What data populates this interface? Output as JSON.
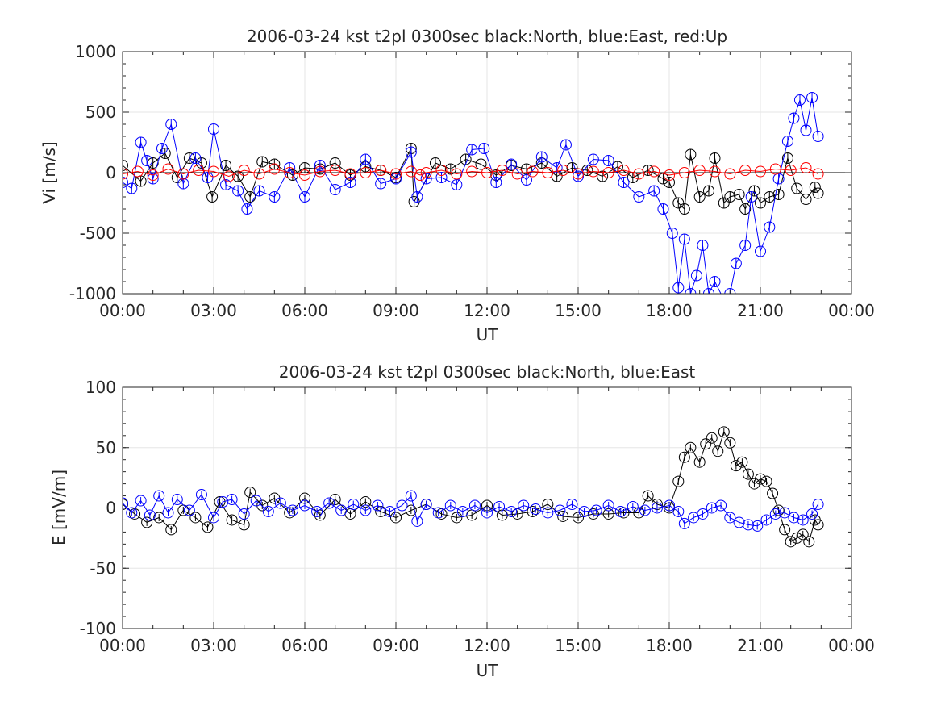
{
  "chart_data": [
    {
      "type": "scatter",
      "title": "2006-03-24 kst t2pl 0300sec black:North, blue:East, red:Up",
      "xlabel": "UT",
      "ylabel": "Vi [m/s]",
      "xlim": [
        0,
        24
      ],
      "ylim": [
        -1000,
        1000
      ],
      "grid": true,
      "xticks": [
        "00:00",
        "03:00",
        "06:00",
        "09:00",
        "12:00",
        "15:00",
        "18:00",
        "21:00",
        "00:00"
      ],
      "yticks": [
        "-1000",
        "-500",
        "0",
        "500",
        "1000"
      ],
      "x_unit": "hours UT",
      "colors": {
        "North": "#000000",
        "East": "#0000ff",
        "Up": "#ff0000"
      },
      "series": [
        {
          "name": "North",
          "x": [
            0.0,
            0.6,
            1.0,
            1.4,
            1.8,
            2.2,
            2.6,
            2.95,
            3.4,
            3.8,
            4.2,
            4.6,
            5.0,
            5.6,
            6.0,
            6.5,
            7.0,
            7.5,
            8.0,
            8.5,
            9.0,
            9.5,
            9.6,
            10.3,
            10.8,
            11.3,
            11.8,
            12.3,
            12.8,
            13.3,
            13.8,
            14.3,
            14.8,
            15.3,
            15.8,
            16.3,
            16.8,
            17.3,
            17.8,
            18.0,
            18.3,
            18.5,
            18.7,
            19.0,
            19.3,
            19.5,
            19.8,
            20.0,
            20.3,
            20.5,
            20.8,
            21.0,
            21.3,
            21.6,
            21.9,
            22.2,
            22.5,
            22.8,
            22.9
          ],
          "y": [
            60,
            -70,
            80,
            160,
            -40,
            120,
            80,
            -200,
            60,
            -30,
            -200,
            90,
            70,
            -20,
            40,
            30,
            80,
            -20,
            50,
            20,
            -40,
            200,
            -240,
            80,
            30,
            110,
            70,
            -20,
            60,
            30,
            80,
            -30,
            40,
            20,
            -30,
            50,
            -40,
            20,
            -50,
            -80,
            -250,
            -300,
            150,
            -200,
            -150,
            120,
            -250,
            -200,
            -180,
            -300,
            -150,
            -250,
            -200,
            -180,
            120,
            -130,
            -220,
            -120,
            -170
          ]
        },
        {
          "name": "East",
          "x": [
            0.0,
            0.3,
            0.6,
            0.8,
            1.0,
            1.3,
            1.6,
            2.0,
            2.4,
            2.8,
            3.0,
            3.4,
            3.8,
            4.1,
            4.5,
            5.0,
            5.5,
            6.0,
            6.5,
            7.0,
            7.5,
            8.0,
            8.5,
            9.0,
            9.5,
            9.7,
            10.0,
            10.5,
            11.0,
            11.5,
            11.9,
            12.3,
            12.8,
            13.3,
            13.8,
            14.3,
            14.6,
            15.0,
            15.5,
            16.0,
            16.5,
            17.0,
            17.5,
            17.8,
            18.1,
            18.3,
            18.5,
            18.7,
            18.9,
            19.1,
            19.3,
            19.5,
            19.8,
            20.0,
            20.2,
            20.5,
            20.7,
            21.0,
            21.3,
            21.6,
            21.9,
            22.1,
            22.3,
            22.5,
            22.7,
            22.9
          ],
          "y": [
            -80,
            -130,
            250,
            100,
            -50,
            200,
            400,
            -90,
            120,
            -40,
            360,
            -100,
            -150,
            -300,
            -150,
            -200,
            40,
            -200,
            60,
            -140,
            -80,
            110,
            -90,
            -50,
            170,
            -200,
            -50,
            -40,
            -100,
            190,
            200,
            -80,
            70,
            -60,
            130,
            40,
            230,
            -30,
            110,
            100,
            -80,
            -200,
            -150,
            -300,
            -500,
            -950,
            -550,
            -1000,
            -850,
            -600,
            -1000,
            -900,
            -1050,
            -1000,
            -750,
            -600,
            -200,
            -650,
            -450,
            -50,
            260,
            450,
            600,
            350,
            620,
            300
          ]
        },
        {
          "name": "Up",
          "x": [
            0.0,
            0.5,
            1.0,
            1.5,
            2.0,
            2.5,
            3.0,
            3.5,
            4.0,
            4.5,
            5.0,
            5.5,
            6.0,
            6.5,
            7.0,
            7.5,
            8.0,
            8.5,
            9.0,
            9.5,
            9.8,
            10.0,
            10.5,
            11.0,
            11.5,
            12.0,
            12.5,
            13.0,
            13.5,
            14.0,
            14.5,
            15.0,
            15.5,
            16.0,
            16.5,
            17.0,
            17.5,
            18.0,
            18.5,
            19.0,
            19.5,
            20.0,
            20.5,
            21.0,
            21.5,
            22.0,
            22.5,
            22.9
          ],
          "y": [
            -10,
            10,
            -20,
            30,
            -10,
            20,
            10,
            -30,
            20,
            -10,
            30,
            0,
            -20,
            10,
            20,
            -10,
            0,
            20,
            -10,
            10,
            -20,
            0,
            20,
            -10,
            10,
            0,
            20,
            -10,
            10,
            0,
            20,
            -10,
            10,
            0,
            20,
            -10,
            10,
            -20,
            0,
            20,
            10,
            -10,
            20,
            10,
            30,
            20,
            40,
            -10
          ]
        }
      ]
    },
    {
      "type": "scatter",
      "title": "2006-03-24 kst t2pl 0300sec black:North, blue:East",
      "xlabel": "UT",
      "ylabel": "E [mV/m]",
      "xlim": [
        0,
        24
      ],
      "ylim": [
        -100,
        100
      ],
      "grid": true,
      "xticks": [
        "00:00",
        "03:00",
        "06:00",
        "09:00",
        "12:00",
        "15:00",
        "18:00",
        "21:00",
        "00:00"
      ],
      "yticks": [
        "-100",
        "-50",
        "0",
        "50",
        "100"
      ],
      "x_unit": "hours UT",
      "colors": {
        "North": "#000000",
        "East": "#0000ff"
      },
      "series": [
        {
          "name": "North",
          "x": [
            0.0,
            0.4,
            0.8,
            1.2,
            1.6,
            2.0,
            2.4,
            2.8,
            3.2,
            3.6,
            4.0,
            4.2,
            4.6,
            5.0,
            5.5,
            6.0,
            6.5,
            7.0,
            7.5,
            8.0,
            8.5,
            9.0,
            9.5,
            10.0,
            10.5,
            11.0,
            11.5,
            12.0,
            12.5,
            13.0,
            13.5,
            14.0,
            14.5,
            15.0,
            15.5,
            16.0,
            16.5,
            17.0,
            17.3,
            17.6,
            18.0,
            18.3,
            18.5,
            18.7,
            19.0,
            19.2,
            19.4,
            19.6,
            19.8,
            20.0,
            20.2,
            20.4,
            20.6,
            20.8,
            21.0,
            21.2,
            21.4,
            21.6,
            21.8,
            22.0,
            22.2,
            22.4,
            22.6,
            22.8,
            22.9
          ],
          "y": [
            3,
            -5,
            -12,
            -8,
            -18,
            -2,
            -8,
            -16,
            5,
            -10,
            -14,
            13,
            2,
            8,
            -4,
            8,
            -6,
            7,
            -5,
            5,
            -3,
            -8,
            -2,
            3,
            -5,
            -8,
            -6,
            2,
            -6,
            -5,
            -3,
            3,
            -7,
            -8,
            -5,
            -5,
            -4,
            -4,
            10,
            3,
            0,
            22,
            42,
            50,
            38,
            53,
            58,
            47,
            63,
            54,
            35,
            38,
            28,
            20,
            24,
            22,
            12,
            -2,
            -18,
            -28,
            -25,
            -22,
            -28,
            -10,
            -14
          ]
        },
        {
          "name": "East",
          "x": [
            0.0,
            0.3,
            0.6,
            0.9,
            1.2,
            1.5,
            1.8,
            2.2,
            2.6,
            3.0,
            3.3,
            3.6,
            4.0,
            4.4,
            4.8,
            5.2,
            5.6,
            6.0,
            6.4,
            6.8,
            7.2,
            7.6,
            8.0,
            8.4,
            8.8,
            9.2,
            9.5,
            9.7,
            10.0,
            10.4,
            10.8,
            11.2,
            11.6,
            12.0,
            12.4,
            12.8,
            13.2,
            13.6,
            14.0,
            14.4,
            14.8,
            15.2,
            15.6,
            16.0,
            16.4,
            16.8,
            17.2,
            17.6,
            18.0,
            18.3,
            18.5,
            18.8,
            19.1,
            19.4,
            19.7,
            20.0,
            20.3,
            20.6,
            20.9,
            21.2,
            21.5,
            21.8,
            22.1,
            22.4,
            22.7,
            22.9
          ],
          "y": [
            4,
            -4,
            6,
            -6,
            10,
            -4,
            7,
            -2,
            11,
            -8,
            5,
            7,
            -5,
            6,
            -3,
            4,
            -2,
            2,
            -3,
            4,
            -2,
            3,
            -2,
            2,
            -3,
            2,
            10,
            -11,
            3,
            -4,
            2,
            -3,
            2,
            -4,
            1,
            -3,
            2,
            -1,
            -4,
            -2,
            3,
            -3,
            -2,
            2,
            -3,
            1,
            -2,
            0,
            2,
            -3,
            -13,
            -8,
            -5,
            0,
            2,
            -8,
            -12,
            -14,
            -15,
            -10,
            -5,
            -4,
            -8,
            -10,
            -5,
            3
          ]
        }
      ]
    }
  ]
}
